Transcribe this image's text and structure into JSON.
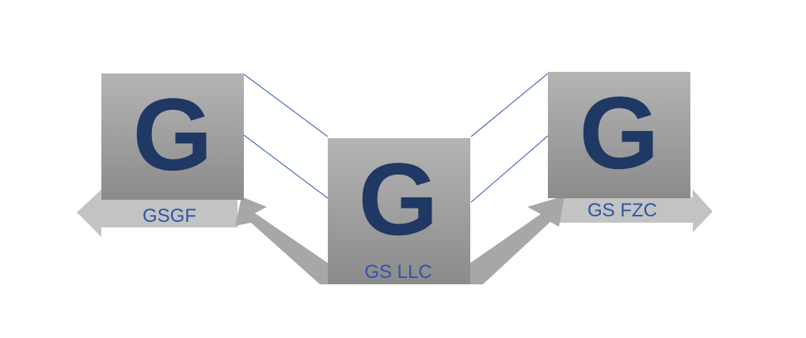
{
  "colors": {
    "arrow_light": "#c3c3c3",
    "arrow_dark": "#a7a7a7",
    "box_top": "#b4b4b4",
    "box_bottom": "#8b8b8b",
    "logo_navy": "#1f3864",
    "label_blue": "#2f55a4",
    "connector_blue": "#4a6fb0"
  },
  "entities": {
    "left": {
      "logo_letter": "G",
      "label": "GSGF"
    },
    "center": {
      "logo_letter": "G",
      "label": "GS LLC"
    },
    "right": {
      "logo_letter": "G",
      "label": "GS FZC"
    }
  }
}
